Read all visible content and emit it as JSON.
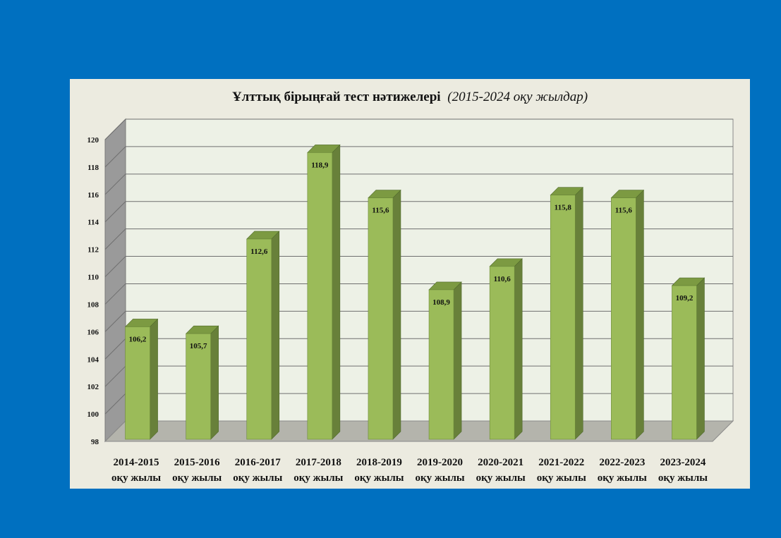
{
  "colors": {
    "background": "#0070c0",
    "panel": "#ecebe0",
    "plot_back_wall": "#edf1e6",
    "side_wall": "#9a9a9a",
    "floor": "#b4b4ac",
    "bar_front": "#9bbb59",
    "bar_side": "#68803a",
    "bar_top": "#7c9a42"
  },
  "chart_data": {
    "type": "bar",
    "style": "3d-column",
    "title": "Ұлттық бірыңғай тест нәтижелері",
    "subtitle": "(2015-2024 оқу жылдар)",
    "categories": [
      [
        "2014-2015",
        "оқу жылы"
      ],
      [
        "2015-2016",
        "оқу жылы"
      ],
      [
        "2016-2017",
        "оқу жылы"
      ],
      [
        "2017-2018",
        "оқу жылы"
      ],
      [
        "2018-2019",
        "оқу жылы"
      ],
      [
        "2019-2020",
        "оқу жылы"
      ],
      [
        "2020-2021",
        "оқу жылы"
      ],
      [
        "2021-2022",
        "оқу жылы"
      ],
      [
        "2022-2023",
        "оқу жылы"
      ],
      [
        "2023-2024",
        "оқу жылы"
      ]
    ],
    "values": [
      106.2,
      105.7,
      112.6,
      118.9,
      115.6,
      108.9,
      110.6,
      115.8,
      115.6,
      109.2
    ],
    "data_labels": [
      "106,2",
      "105,7",
      "112,6",
      "118,9",
      "115,6",
      "108,9",
      "110,6",
      "115,8",
      "115,6",
      "109,2"
    ],
    "ylim": [
      98,
      120
    ],
    "yticks": [
      98,
      100,
      102,
      104,
      106,
      108,
      110,
      112,
      114,
      116,
      118,
      120
    ],
    "grid": true,
    "legend": "none"
  }
}
